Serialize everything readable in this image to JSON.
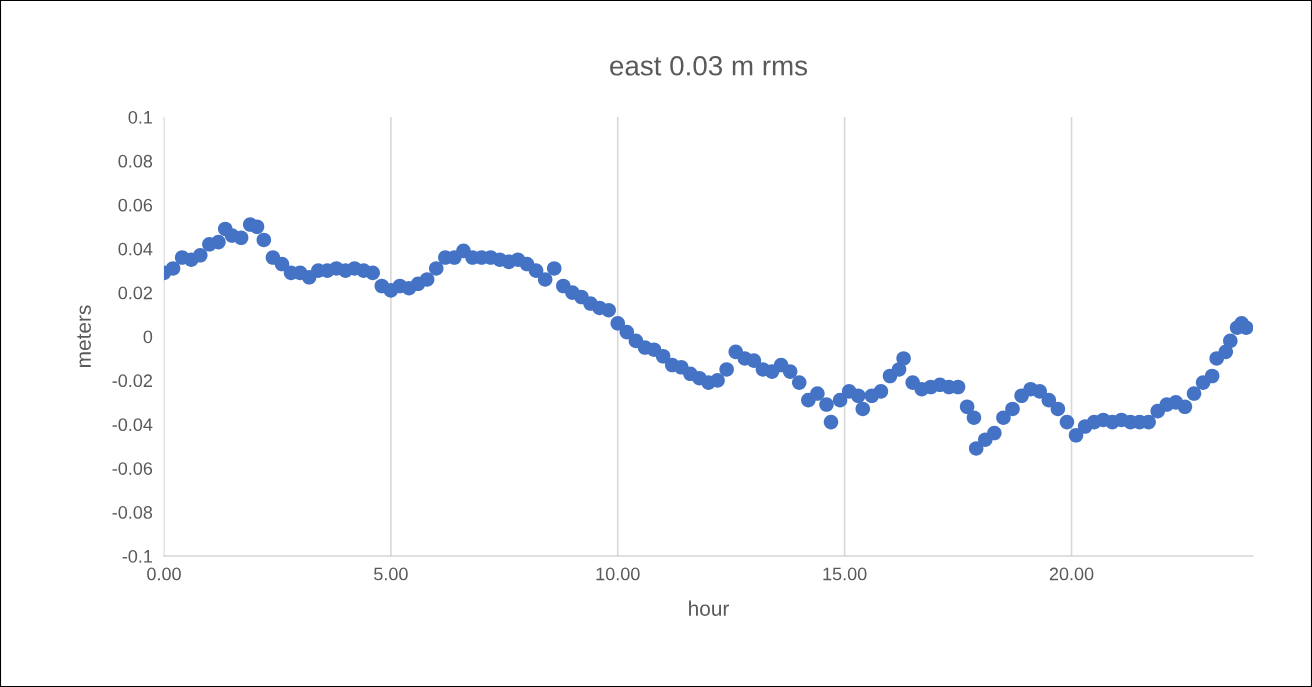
{
  "chart_data": {
    "type": "scatter",
    "title": "east 0.03 m rms",
    "xlabel": "hour",
    "ylabel": "meters",
    "xlim": [
      0,
      24
    ],
    "xticks": [
      {
        "value": 0,
        "label": "0.00"
      },
      {
        "value": 5,
        "label": "5.00"
      },
      {
        "value": 10,
        "label": "10.00"
      },
      {
        "value": 15,
        "label": "15.00"
      },
      {
        "value": 20,
        "label": "20.00"
      }
    ],
    "ylim": [
      -0.1,
      0.1
    ],
    "yticks": [
      -0.1,
      -0.08,
      -0.06,
      -0.04,
      -0.02,
      0,
      0.02,
      0.04,
      0.06,
      0.08,
      0.1
    ],
    "grid": "x",
    "marker": "circle",
    "legend": false,
    "series": [
      {
        "color": "#4472c4",
        "x": [
          0.0,
          0.2,
          0.4,
          0.6,
          0.8,
          1.0,
          1.2,
          1.35,
          1.5,
          1.7,
          1.9,
          2.05,
          2.2,
          2.4,
          2.6,
          2.8,
          3.0,
          3.2,
          3.4,
          3.6,
          3.8,
          4.0,
          4.2,
          4.4,
          4.6,
          4.8,
          5.0,
          5.2,
          5.4,
          5.6,
          5.8,
          6.0,
          6.2,
          6.4,
          6.6,
          6.8,
          7.0,
          7.2,
          7.4,
          7.6,
          7.8,
          8.0,
          8.2,
          8.4,
          8.6,
          8.8,
          9.0,
          9.2,
          9.4,
          9.6,
          9.8,
          10.0,
          10.2,
          10.4,
          10.6,
          10.8,
          11.0,
          11.2,
          11.4,
          11.6,
          11.8,
          12.0,
          12.2,
          12.4,
          12.6,
          12.8,
          13.0,
          13.2,
          13.4,
          13.6,
          13.8,
          14.0,
          14.2,
          14.4,
          14.6,
          14.7,
          14.9,
          15.1,
          15.3,
          15.4,
          15.6,
          15.8,
          16.0,
          16.2,
          16.3,
          16.5,
          16.7,
          16.9,
          17.1,
          17.3,
          17.5,
          17.7,
          17.85,
          17.9,
          18.1,
          18.3,
          18.5,
          18.7,
          18.9,
          19.1,
          19.3,
          19.5,
          19.7,
          19.9,
          20.1,
          20.3,
          20.5,
          20.7,
          20.9,
          21.1,
          21.3,
          21.5,
          21.7,
          21.9,
          22.1,
          22.3,
          22.5,
          22.7,
          22.9,
          23.1,
          23.2,
          23.4,
          23.5,
          23.65,
          23.75,
          23.85
        ],
        "values": [
          0.029,
          0.031,
          0.036,
          0.035,
          0.037,
          0.042,
          0.043,
          0.049,
          0.046,
          0.045,
          0.051,
          0.05,
          0.044,
          0.036,
          0.033,
          0.029,
          0.029,
          0.027,
          0.03,
          0.03,
          0.031,
          0.03,
          0.031,
          0.03,
          0.029,
          0.023,
          0.021,
          0.023,
          0.022,
          0.024,
          0.026,
          0.031,
          0.036,
          0.036,
          0.039,
          0.036,
          0.036,
          0.036,
          0.035,
          0.034,
          0.035,
          0.033,
          0.03,
          0.026,
          0.031,
          0.023,
          0.02,
          0.018,
          0.015,
          0.013,
          0.012,
          0.006,
          0.002,
          -0.002,
          -0.005,
          -0.006,
          -0.009,
          -0.013,
          -0.014,
          -0.017,
          -0.019,
          -0.021,
          -0.02,
          -0.015,
          -0.007,
          -0.01,
          -0.011,
          -0.015,
          -0.016,
          -0.013,
          -0.016,
          -0.021,
          -0.029,
          -0.026,
          -0.031,
          -0.039,
          -0.029,
          -0.025,
          -0.027,
          -0.033,
          -0.027,
          -0.025,
          -0.018,
          -0.015,
          -0.01,
          -0.021,
          -0.024,
          -0.023,
          -0.022,
          -0.023,
          -0.023,
          -0.032,
          -0.037,
          -0.051,
          -0.047,
          -0.044,
          -0.037,
          -0.033,
          -0.027,
          -0.024,
          -0.025,
          -0.029,
          -0.033,
          -0.039,
          -0.045,
          -0.041,
          -0.039,
          -0.038,
          -0.039,
          -0.038,
          -0.039,
          -0.039,
          -0.039,
          -0.034,
          -0.031,
          -0.03,
          -0.032,
          -0.026,
          -0.021,
          -0.018,
          -0.01,
          -0.007,
          -0.002,
          0.004,
          0.006,
          0.004
        ]
      }
    ]
  }
}
